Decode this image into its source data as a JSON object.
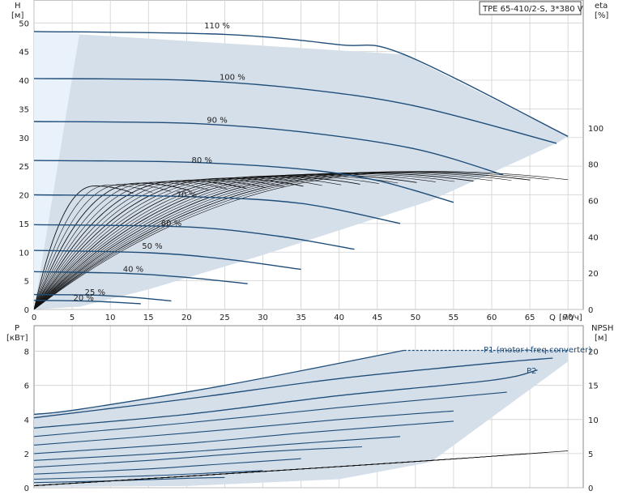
{
  "chart_data": [
    {
      "type": "line",
      "title": "TPE 65-410/2-S, 3*380 V",
      "ylabel": "H",
      "yunit": "[м]",
      "y2label": "eta",
      "y2unit": "[%]",
      "xlabel": "Q",
      "xunit": "[м³/ч]",
      "xlim": [
        0,
        72
      ],
      "ylim": [
        0,
        54
      ],
      "y2lim": [
        0,
        100
      ],
      "grid": true,
      "x_ticks": [
        0,
        5,
        10,
        15,
        20,
        25,
        30,
        35,
        40,
        45,
        50,
        55,
        60,
        65,
        70
      ],
      "y_ticks": [
        0,
        5,
        10,
        15,
        20,
        25,
        30,
        35,
        40,
        45,
        50
      ],
      "y2_ticks": [
        0,
        20,
        40,
        60,
        80,
        100
      ],
      "operating_range": {
        "upper": [
          [
            0,
            48.5
          ],
          [
            48.5,
            44.5
          ],
          [
            70,
            30.2
          ]
        ],
        "right_boundary": [
          [
            70,
            30.2
          ],
          [
            68.5,
            29
          ],
          [
            52,
            19
          ],
          [
            30,
            9.5
          ],
          [
            15,
            3.5
          ],
          [
            6,
            0.5
          ],
          [
            0,
            0
          ]
        ],
        "light_zone": [
          [
            0,
            0
          ],
          [
            0,
            48.5
          ],
          [
            6,
            48.5
          ]
        ]
      },
      "series": [
        {
          "name": "110 %",
          "label_at": [
            24,
            49.5
          ],
          "points": [
            [
              0,
              48.5
            ],
            [
              25,
              48.0
            ],
            [
              40,
              46.2
            ],
            [
              48.5,
              44.5
            ],
            [
              70,
              30.2
            ]
          ]
        },
        {
          "name": "100 %",
          "label_at": [
            26,
            40.5
          ],
          "points": [
            [
              0,
              40.3
            ],
            [
              20,
              40.0
            ],
            [
              35,
              38.5
            ],
            [
              50,
              35.5
            ],
            [
              68.5,
              29.0
            ]
          ]
        },
        {
          "name": "90 %",
          "label_at": [
            24,
            33
          ],
          "points": [
            [
              0,
              32.8
            ],
            [
              20,
              32.5
            ],
            [
              35,
              31.0
            ],
            [
              50,
              28.0
            ],
            [
              61.5,
              23.5
            ]
          ]
        },
        {
          "name": "80 %",
          "label_at": [
            22,
            26
          ],
          "points": [
            [
              0,
              26.0
            ],
            [
              20,
              25.7
            ],
            [
              35,
              24.5
            ],
            [
              45,
              22.5
            ],
            [
              55,
              18.7
            ]
          ]
        },
        {
          "name": "70 %",
          "label_at": [
            20,
            20
          ],
          "points": [
            [
              0,
              20.0
            ],
            [
              20,
              19.7
            ],
            [
              35,
              18.5
            ],
            [
              48,
              15.0
            ]
          ]
        },
        {
          "name": "60 %",
          "label_at": [
            18,
            15
          ],
          "points": [
            [
              0,
              14.8
            ],
            [
              20,
              14.4
            ],
            [
              32,
              12.8
            ],
            [
              42,
              10.5
            ]
          ]
        },
        {
          "name": "50 %",
          "label_at": [
            15.5,
            11
          ],
          "points": [
            [
              0,
              10.3
            ],
            [
              15,
              9.9
            ],
            [
              25,
              8.8
            ],
            [
              35,
              7.0
            ]
          ]
        },
        {
          "name": "40 %",
          "label_at": [
            13,
            7
          ],
          "points": [
            [
              0,
              6.6
            ],
            [
              12,
              6.3
            ],
            [
              20,
              5.6
            ],
            [
              28,
              4.5
            ]
          ]
        },
        {
          "name": "25 %",
          "label_at": [
            8,
            3
          ],
          "points": [
            [
              0,
              2.6
            ],
            [
              8,
              2.5
            ],
            [
              13,
              2.1
            ],
            [
              18,
              1.5
            ]
          ]
        },
        {
          "name": "20 %",
          "label_at": [
            6.5,
            2
          ],
          "points": [
            [
              0,
              1.6
            ],
            [
              6,
              1.5
            ],
            [
              10,
              1.3
            ],
            [
              14,
              1.0
            ]
          ]
        }
      ],
      "efficiency_curves_count": 24
    },
    {
      "type": "line",
      "ylabel": "P",
      "yunit": "[кВт]",
      "y2label": "NPSH",
      "y2unit": "[м]",
      "xlim": [
        0,
        72
      ],
      "ylim": [
        0,
        9.5
      ],
      "y2lim": [
        0,
        23.75
      ],
      "grid": true,
      "y_ticks": [
        0,
        2,
        4,
        6,
        8
      ],
      "y2_ticks": [
        0,
        5,
        10,
        15,
        20
      ],
      "annotations": [
        "P1 (motor+freq.converter)",
        "P2"
      ],
      "power_band": {
        "top": [
          [
            0,
            4.3
          ],
          [
            6,
            4.6
          ],
          [
            25,
            6.0
          ],
          [
            48.5,
            8.05
          ],
          [
            70,
            8.05
          ]
        ],
        "bottom": [
          [
            0,
            0.05
          ],
          [
            20,
            0.1
          ],
          [
            40,
            0.5
          ],
          [
            52,
            1.5
          ],
          [
            70,
            7.4
          ]
        ]
      },
      "series": [
        {
          "points": [
            [
              0,
              4.1
            ],
            [
              20,
              5.2
            ],
            [
              40,
              6.4
            ],
            [
              60,
              7.3
            ],
            [
              68,
              7.6
            ]
          ]
        },
        {
          "points": [
            [
              0,
              3.5
            ],
            [
              20,
              4.3
            ],
            [
              40,
              5.4
            ],
            [
              60,
              6.3
            ],
            [
              66,
              6.9
            ]
          ]
        },
        {
          "points": [
            [
              0,
              3.0
            ],
            [
              20,
              3.8
            ],
            [
              40,
              4.7
            ],
            [
              62,
              5.6
            ]
          ]
        },
        {
          "points": [
            [
              0,
              2.5
            ],
            [
              20,
              3.2
            ],
            [
              40,
              4.0
            ],
            [
              55,
              4.5
            ]
          ]
        },
        {
          "points": [
            [
              0,
              2.0
            ],
            [
              20,
              2.6
            ],
            [
              35,
              3.2
            ],
            [
              55,
              3.9
            ]
          ]
        },
        {
          "points": [
            [
              0,
              1.6
            ],
            [
              20,
              2.1
            ],
            [
              35,
              2.6
            ],
            [
              48,
              3.0
            ]
          ]
        },
        {
          "points": [
            [
              0,
              1.2
            ],
            [
              15,
              1.6
            ],
            [
              30,
              2.1
            ],
            [
              43,
              2.4
            ]
          ]
        },
        {
          "points": [
            [
              0,
              0.8
            ],
            [
              15,
              1.1
            ],
            [
              25,
              1.4
            ],
            [
              35,
              1.7
            ]
          ]
        },
        {
          "points": [
            [
              0,
              0.5
            ],
            [
              15,
              0.7
            ],
            [
              25,
              0.9
            ],
            [
              30,
              1.0
            ]
          ]
        },
        {
          "points": [
            [
              0,
              0.3
            ],
            [
              10,
              0.4
            ],
            [
              20,
              0.55
            ],
            [
              25,
              0.6
            ]
          ]
        }
      ],
      "npsh_curves_count": 22
    }
  ]
}
